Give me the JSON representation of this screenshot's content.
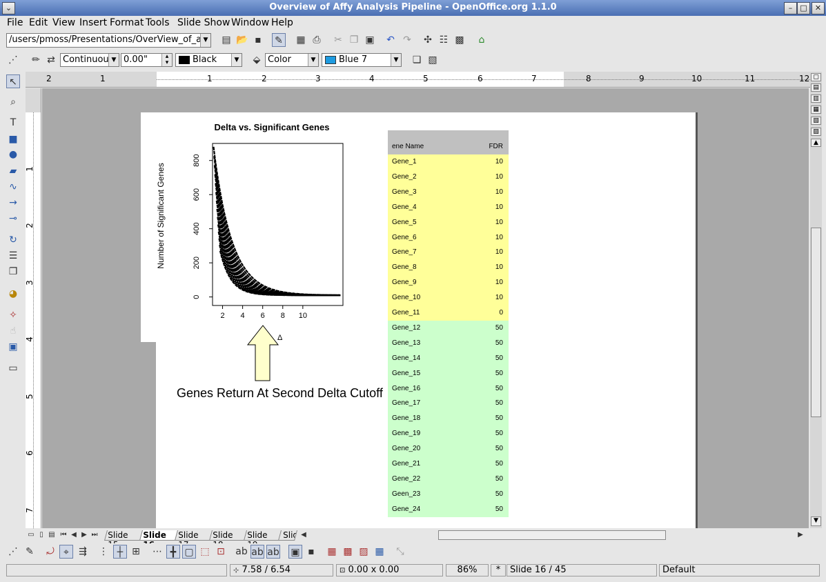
{
  "window": {
    "title": "Overview of Affy Analysis Pipeline - OpenOffice.org 1.1.0",
    "buttons": [
      "⌄",
      "–",
      "□",
      "✕"
    ]
  },
  "menu": [
    "File",
    "Edit",
    "View",
    "Insert",
    "Format",
    "Tools",
    "Slide Show",
    "Window",
    "Help"
  ],
  "toolbar": {
    "path": "/users/pmoss/Presentations/OverView_of_affy_a"
  },
  "line": {
    "style": "Continuous",
    "width": "0.00\"",
    "color": "Black"
  },
  "area": {
    "fill": "Color",
    "color": "Blue 7",
    "swatch": "#1e9be0"
  },
  "hruler_labels": [
    "2",
    "1",
    "1",
    "2",
    "3",
    "4",
    "5",
    "6",
    "7",
    "8",
    "9",
    "10",
    "11",
    "12"
  ],
  "vruler_labels": [
    "1",
    "2",
    "3",
    "4",
    "5",
    "6",
    "7"
  ],
  "slide": {
    "chart_title": "Delta vs. Significant Genes",
    "y_label": "Number of Significant Genes",
    "partial_x_label": "Δ",
    "callout": "Genes Return At Second Delta Cutoff",
    "chart_data": {
      "type": "line",
      "title": "Delta vs. Significant Genes",
      "xlabel": "",
      "ylabel": "Number of Significant Genes",
      "yticks": [
        0,
        200,
        400,
        600,
        800
      ],
      "xticks": [
        2,
        4,
        6,
        8,
        10
      ],
      "ylim": [
        -50,
        900
      ],
      "series_description_note": ""
    },
    "table": {
      "header": [
        "ene Name",
        "FDR"
      ],
      "rows": [
        [
          "Gene_1",
          "10"
        ],
        [
          "Gene_2",
          "10"
        ],
        [
          "Gene_3",
          "10"
        ],
        [
          "Gene_4",
          "10"
        ],
        [
          "Gene_5",
          "10"
        ],
        [
          "Gene_6",
          "10"
        ],
        [
          "Gene_7",
          "10"
        ],
        [
          "Gene_8",
          "10"
        ],
        [
          "Gene_9",
          "10"
        ],
        [
          "Gene_10",
          "10"
        ],
        [
          "Gene_11",
          "0"
        ],
        [
          "Gene_12",
          "50"
        ],
        [
          "Gene_13",
          "50"
        ],
        [
          "Gene_14",
          "50"
        ],
        [
          "Gene_15",
          "50"
        ],
        [
          "Gene_16",
          "50"
        ],
        [
          "Gene_17",
          "50"
        ],
        [
          "Gene_18",
          "50"
        ],
        [
          "Gene_19",
          "50"
        ],
        [
          "Gene_20",
          "50"
        ],
        [
          "Gene_21",
          "50"
        ],
        [
          "Gene_22",
          "50"
        ],
        [
          "Geen_23",
          "50"
        ],
        [
          "Gene_24",
          "50"
        ]
      ],
      "colors": {
        "header": "#c0c0c0",
        "yellow": "#ffff99",
        "green": "#ccffcc"
      }
    }
  },
  "tabs": [
    "Slide 15",
    "Slide 16",
    "Slide 17",
    "Slide 18",
    "Slide 19",
    "Slid"
  ],
  "active_tab": "Slide 16",
  "status": {
    "position": "7.58 / 6.54",
    "size": "0.00 x 0.00",
    "zoom": "86%",
    "modified": "*",
    "slide": "Slide 16 / 45",
    "layout": "Default"
  }
}
